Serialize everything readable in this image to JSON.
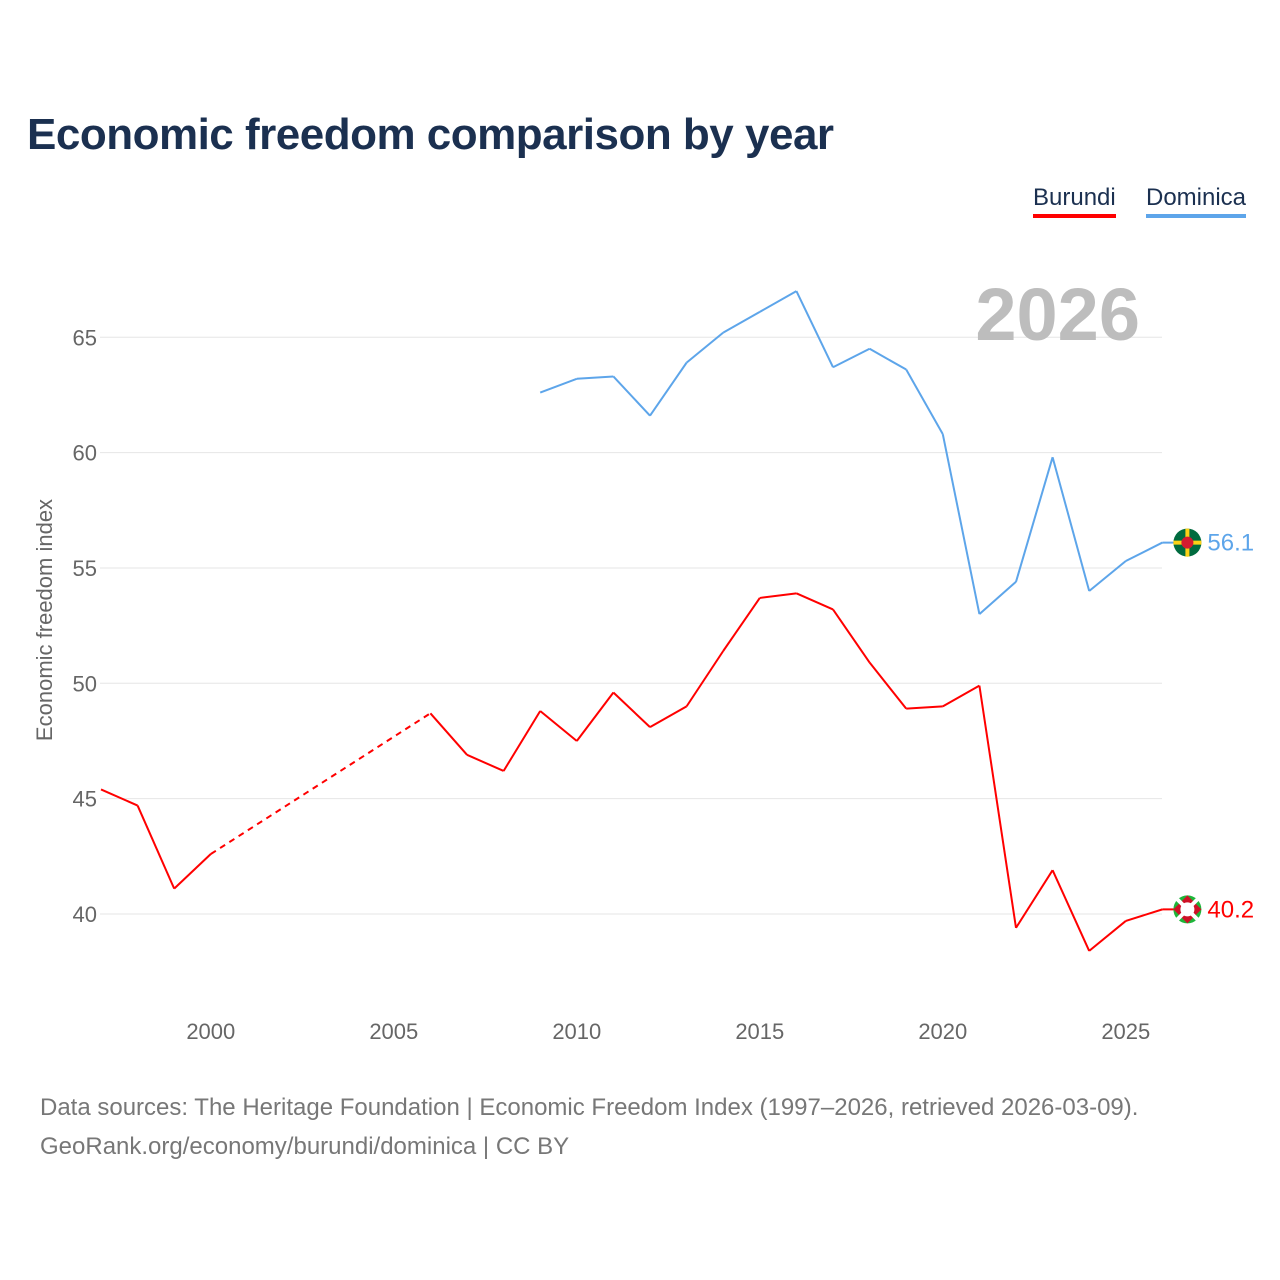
{
  "chart_data": {
    "type": "line",
    "title": "Economic freedom comparison by year",
    "ylabel": "Economic freedom index",
    "xlabel": "",
    "xlim": [
      1997,
      2026
    ],
    "ylim": [
      36,
      68
    ],
    "x_ticks": [
      2000,
      2005,
      2010,
      2015,
      2020,
      2025
    ],
    "y_ticks": [
      40,
      45,
      50,
      55,
      60,
      65
    ],
    "grid": true,
    "legend_position": "top-right",
    "year_label": "2026",
    "series": [
      {
        "name": "Burundi",
        "color": "#ff0000",
        "end_label": "40.2",
        "points": [
          [
            1997,
            45.4
          ],
          [
            1998,
            44.7
          ],
          [
            1999,
            41.1
          ],
          [
            2000,
            42.6
          ],
          [
            2006,
            48.7
          ],
          [
            2007,
            46.9
          ],
          [
            2008,
            46.2
          ],
          [
            2009,
            48.8
          ],
          [
            2010,
            47.5
          ],
          [
            2011,
            49.6
          ],
          [
            2012,
            48.1
          ],
          [
            2013,
            49.0
          ],
          [
            2014,
            51.4
          ],
          [
            2015,
            53.7
          ],
          [
            2016,
            53.9
          ],
          [
            2017,
            53.2
          ],
          [
            2018,
            50.9
          ],
          [
            2019,
            48.9
          ],
          [
            2020,
            49.0
          ],
          [
            2021,
            49.9
          ],
          [
            2022,
            39.4
          ],
          [
            2023,
            41.9
          ],
          [
            2024,
            38.4
          ],
          [
            2025,
            39.7
          ],
          [
            2026,
            40.2
          ]
        ],
        "gaps": [
          [
            2000,
            2006
          ]
        ]
      },
      {
        "name": "Dominica",
        "color": "#5da5ea",
        "end_label": "56.1",
        "points": [
          [
            2009,
            62.6
          ],
          [
            2010,
            63.2
          ],
          [
            2011,
            63.3
          ],
          [
            2012,
            61.6
          ],
          [
            2013,
            63.9
          ],
          [
            2014,
            65.2
          ],
          [
            2015,
            66.1
          ],
          [
            2016,
            67.0
          ],
          [
            2017,
            63.7
          ],
          [
            2018,
            64.5
          ],
          [
            2019,
            63.6
          ],
          [
            2020,
            60.8
          ],
          [
            2021,
            53.0
          ],
          [
            2022,
            54.4
          ],
          [
            2023,
            59.8
          ],
          [
            2024,
            54.0
          ],
          [
            2025,
            55.3
          ],
          [
            2026,
            56.1
          ]
        ],
        "gaps": []
      }
    ]
  },
  "source_line1": "Data sources: The Heritage Foundation | Economic Freedom Index (1997–2026, retrieved 2026-03-09).",
  "source_line2": "GeoRank.org/economy/burundi/dominica | CC BY"
}
